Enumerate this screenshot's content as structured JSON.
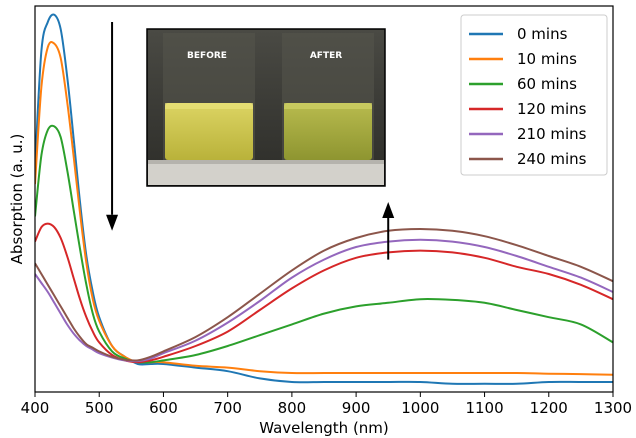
{
  "chart_data": {
    "type": "line",
    "xlabel": "Wavelength (nm)",
    "ylabel": "Absorption (a. u.)",
    "xlim": [
      400,
      1300
    ],
    "ylim": [
      0,
      1
    ],
    "x_ticks": [
      400,
      500,
      600,
      700,
      800,
      900,
      1000,
      1100,
      1200,
      1300
    ],
    "y_ticks_shown": false,
    "legend_position": "top-right",
    "colors": {
      "0 mins": "#1f77b4",
      "10 mins": "#ff7f0e",
      "60 mins": "#2ca02c",
      "120 mins": "#d62728",
      "210 mins": "#9467bd",
      "240 mins": "#8c564b"
    },
    "x": [
      400,
      410,
      420,
      430,
      440,
      450,
      460,
      470,
      480,
      490,
      500,
      520,
      540,
      560,
      580,
      600,
      650,
      700,
      750,
      800,
      850,
      900,
      950,
      1000,
      1050,
      1100,
      1150,
      1200,
      1250,
      1300
    ],
    "series": [
      {
        "name": "0 mins",
        "values": [
          0.6,
          0.92,
          1.0,
          1.02,
          0.98,
          0.85,
          0.68,
          0.5,
          0.35,
          0.25,
          0.18,
          0.1,
          0.07,
          0.05,
          0.05,
          0.05,
          0.04,
          0.03,
          0.01,
          0.0,
          0.0,
          0.0,
          0.0,
          0.0,
          -0.005,
          -0.005,
          -0.005,
          0.0,
          0.0,
          0.0
        ]
      },
      {
        "name": "10 mins",
        "values": [
          0.55,
          0.82,
          0.93,
          0.94,
          0.9,
          0.78,
          0.63,
          0.47,
          0.33,
          0.23,
          0.17,
          0.1,
          0.07,
          0.055,
          0.055,
          0.055,
          0.045,
          0.04,
          0.03,
          0.025,
          0.025,
          0.025,
          0.025,
          0.025,
          0.025,
          0.025,
          0.025,
          0.023,
          0.022,
          0.02
        ]
      },
      {
        "name": "60 mins",
        "values": [
          0.46,
          0.63,
          0.7,
          0.71,
          0.68,
          0.59,
          0.48,
          0.37,
          0.27,
          0.19,
          0.14,
          0.085,
          0.065,
          0.055,
          0.055,
          0.06,
          0.075,
          0.1,
          0.13,
          0.16,
          0.19,
          0.21,
          0.22,
          0.23,
          0.228,
          0.22,
          0.2,
          0.18,
          0.16,
          0.11
        ]
      },
      {
        "name": "120 mins",
        "values": [
          0.39,
          0.43,
          0.44,
          0.43,
          0.4,
          0.35,
          0.29,
          0.23,
          0.18,
          0.14,
          0.11,
          0.075,
          0.06,
          0.055,
          0.06,
          0.07,
          0.1,
          0.14,
          0.2,
          0.26,
          0.31,
          0.345,
          0.36,
          0.365,
          0.36,
          0.345,
          0.32,
          0.3,
          0.27,
          0.23
        ]
      },
      {
        "name": "210 mins",
        "values": [
          0.3,
          0.275,
          0.25,
          0.22,
          0.19,
          0.16,
          0.135,
          0.115,
          0.1,
          0.09,
          0.08,
          0.068,
          0.06,
          0.058,
          0.065,
          0.08,
          0.115,
          0.165,
          0.225,
          0.29,
          0.34,
          0.375,
          0.39,
          0.395,
          0.39,
          0.375,
          0.35,
          0.32,
          0.29,
          0.25
        ]
      },
      {
        "name": "240 mins",
        "values": [
          0.33,
          0.3,
          0.27,
          0.24,
          0.21,
          0.18,
          0.15,
          0.125,
          0.105,
          0.095,
          0.085,
          0.07,
          0.062,
          0.06,
          0.07,
          0.085,
          0.125,
          0.18,
          0.245,
          0.31,
          0.365,
          0.4,
          0.42,
          0.425,
          0.42,
          0.405,
          0.38,
          0.35,
          0.32,
          0.28
        ]
      }
    ],
    "annotations": [
      {
        "type": "arrow",
        "direction": "down",
        "x": 520,
        "y_from": 1.0,
        "y_to": 0.42
      },
      {
        "type": "arrow",
        "direction": "up",
        "x": 950,
        "y_from": 0.34,
        "y_to": 0.5
      }
    ]
  },
  "inset": {
    "description_labels": {
      "before": "BEFORE",
      "after": "AFTER"
    },
    "colors": {
      "background": "#3a3a34",
      "liquid_before": "#cfc74a",
      "liquid_after": "#a9ad3c",
      "shelf": "#d8d6d0"
    }
  }
}
